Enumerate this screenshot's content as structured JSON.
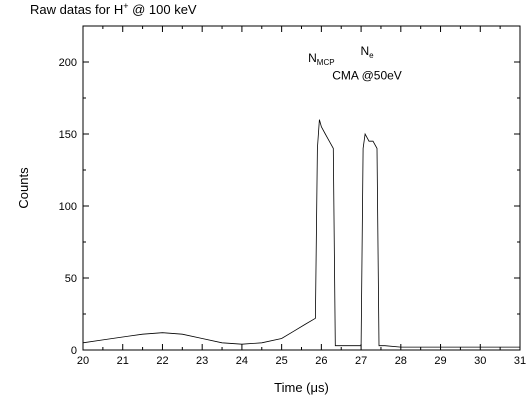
{
  "chart_data": {
    "type": "line",
    "title_main": "Raw datas for H",
    "title_sup": "+",
    "title_rest": " @ 100 keV",
    "xlabel_main": "Time (",
    "xlabel_mu": "μ",
    "xlabel_rest": "s)",
    "ylabel": "Counts",
    "xlim": [
      20,
      31
    ],
    "ylim": [
      0,
      225
    ],
    "xticks": [
      20,
      21,
      22,
      23,
      24,
      25,
      26,
      27,
      28,
      29,
      30,
      31
    ],
    "yticks": [
      0,
      50,
      100,
      150,
      200
    ],
    "grid": false,
    "color": "#000000",
    "series": [
      {
        "x": [
          20.0,
          20.5,
          21.0,
          21.5,
          22.0,
          22.5,
          23.0,
          23.5,
          24.0,
          24.5,
          25.0,
          25.3,
          25.6,
          25.85,
          25.9,
          25.95,
          26.0,
          26.1,
          26.2,
          26.3,
          26.35,
          26.5,
          26.8,
          27.0,
          27.05,
          27.1,
          27.2,
          27.3,
          27.4,
          27.45,
          27.6,
          28.0,
          28.5,
          29.0,
          29.5,
          30.0,
          30.5,
          31.0
        ],
        "y": [
          5,
          7,
          9,
          11,
          12,
          11,
          8,
          5,
          4,
          5,
          8,
          13,
          18,
          22,
          140,
          160,
          155,
          150,
          145,
          140,
          3,
          3,
          3,
          3,
          140,
          150,
          145,
          145,
          140,
          3,
          3,
          2,
          2,
          2,
          2,
          2,
          2,
          2
        ]
      }
    ],
    "annotations": [
      {
        "main": "N",
        "sub": "MCP",
        "x": 26.0,
        "y": 200
      },
      {
        "main": "N",
        "sub": "e",
        "x": 27.15,
        "y": 205
      },
      {
        "text": "CMA @50eV",
        "x": 27.15,
        "y": 188
      }
    ]
  }
}
